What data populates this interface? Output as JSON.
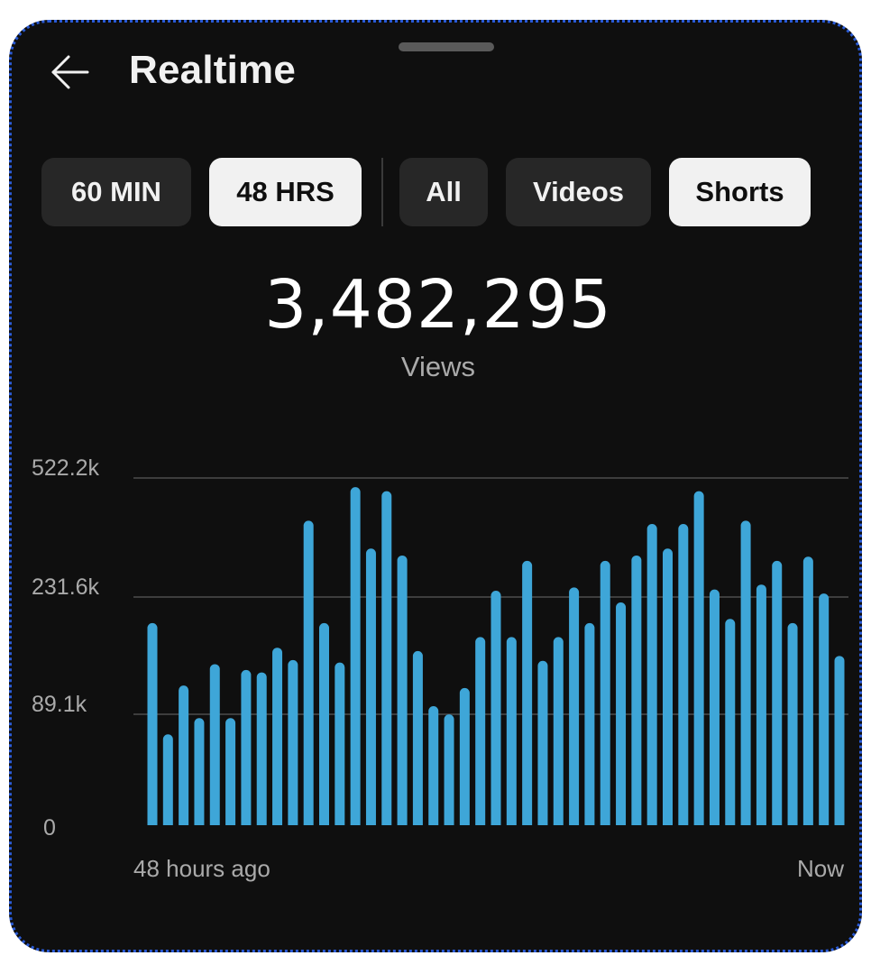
{
  "header": {
    "title": "Realtime",
    "back_icon": "arrow-left-icon"
  },
  "filters": {
    "time_ranges": [
      {
        "label": "60 MIN",
        "selected": false
      },
      {
        "label": "48 HRS",
        "selected": true
      }
    ],
    "content_types": [
      {
        "label": "All",
        "selected": false
      },
      {
        "label": "Videos",
        "selected": false
      },
      {
        "label": "Shorts",
        "selected": true
      }
    ]
  },
  "summary": {
    "value": "3,482,295",
    "label": "Views"
  },
  "colors": {
    "bar": "#3ea6d8",
    "background": "#0f0f0f",
    "chip": "#272727",
    "chip_selected": "#f1f1f1"
  },
  "chart_data": {
    "type": "bar",
    "title": "",
    "xlabel": "",
    "ylabel": "",
    "y_axis_labels": [
      "522.2k",
      "231.6k",
      "89.1k",
      "0"
    ],
    "y_ticks": [
      {
        "label": "522.2k",
        "value": 522200
      },
      {
        "label": "231.6k",
        "value": 231600
      },
      {
        "label": "89.1k",
        "value": 89100
      },
      {
        "label": "0",
        "value": 0
      }
    ],
    "y_scale": "piecewise-linear between tick labels",
    "x_start_label": "48 hours ago",
    "x_end_label": "Now",
    "grid": true,
    "values": [
      200000,
      73000,
      124000,
      86000,
      150000,
      86000,
      143000,
      140000,
      170000,
      155000,
      418000,
      200000,
      152000,
      500000,
      350000,
      490000,
      333000,
      166000,
      99000,
      89000,
      121000,
      183000,
      247000,
      183000,
      320000,
      154000,
      183000,
      255000,
      200000,
      320000,
      225000,
      333000,
      410000,
      350000,
      410000,
      490000,
      250000,
      205000,
      418000,
      262000,
      320000,
      200000,
      330000,
      240000,
      160000
    ]
  }
}
